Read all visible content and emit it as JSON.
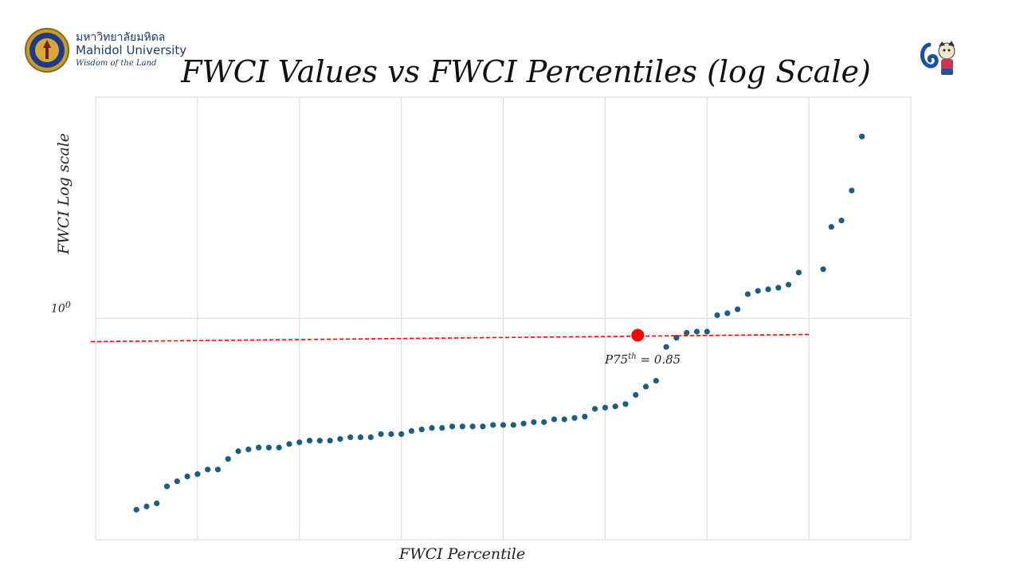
{
  "header": {
    "logo_thai": "มหาวิทยาลัยมหิดล",
    "logo_name": "Mahidol University",
    "logo_tagline": "Wisdom of the Land"
  },
  "chart_data": {
    "type": "scatter",
    "title": "FWCI Values vs FWCI Percentiles (log Scale)",
    "xlabel": "FWCI Percentile",
    "ylabel": "FWCI Log scale",
    "y_scale": "log",
    "y_tick": {
      "base": "10",
      "exponent": "0",
      "value": 1
    },
    "ylim": [
      0.12,
      8.3
    ],
    "xlim": [
      0,
      100
    ],
    "grid": true,
    "point_color": "#1b5e80",
    "reference_line": {
      "y": 0.85,
      "color": "#ff0000",
      "style": "dashed"
    },
    "highlight": {
      "x": 66.5,
      "y": 0.85,
      "color": "#ff0000",
      "label_prefix": "P75",
      "label_sup": "th",
      "label_suffix": "= 0.85"
    },
    "series": [
      {
        "x": [
          5,
          6.25,
          7.5,
          8.75,
          10,
          11.25,
          12.5,
          13.75,
          15,
          16.25,
          17.5,
          18.75,
          20,
          21.25,
          22.5,
          23.75,
          25,
          26.25,
          27.5,
          28.75,
          30,
          31.25,
          32.5,
          33.75,
          35,
          36.25,
          37.5,
          38.75,
          40,
          41.25,
          42.5,
          43.75,
          45,
          46.25,
          47.5,
          48.75,
          50,
          51.25,
          52.5,
          53.75,
          55,
          56.25,
          57.5,
          58.75,
          60,
          61.25,
          62.5,
          63.75,
          65,
          66.25,
          67.5,
          68.75,
          70,
          71.25,
          72.5,
          73.75,
          75,
          76.25,
          77.5,
          78.75,
          80,
          81.25,
          82.5,
          83.75,
          85,
          86.25
        ],
        "y": [
          0.16,
          0.165,
          0.17,
          0.2,
          0.21,
          0.22,
          0.225,
          0.235,
          0.235,
          0.26,
          0.28,
          0.285,
          0.29,
          0.29,
          0.29,
          0.3,
          0.305,
          0.31,
          0.31,
          0.31,
          0.315,
          0.32,
          0.32,
          0.32,
          0.33,
          0.33,
          0.33,
          0.34,
          0.345,
          0.35,
          0.35,
          0.355,
          0.355,
          0.355,
          0.355,
          0.36,
          0.36,
          0.36,
          0.365,
          0.37,
          0.37,
          0.38,
          0.38,
          0.385,
          0.39,
          0.42,
          0.425,
          0.43,
          0.44,
          0.48,
          0.52,
          0.55,
          0.76,
          0.83,
          0.87,
          0.88,
          0.88,
          1.03,
          1.05,
          1.09,
          1.26,
          1.3,
          1.32,
          1.34,
          1.38,
          1.55
        ]
      },
      {
        "x": [
          89.25,
          90.25,
          91.5,
          92.75,
          94
        ],
        "y": [
          1.6,
          2.4,
          2.55,
          3.4,
          5.7
        ]
      }
    ]
  }
}
